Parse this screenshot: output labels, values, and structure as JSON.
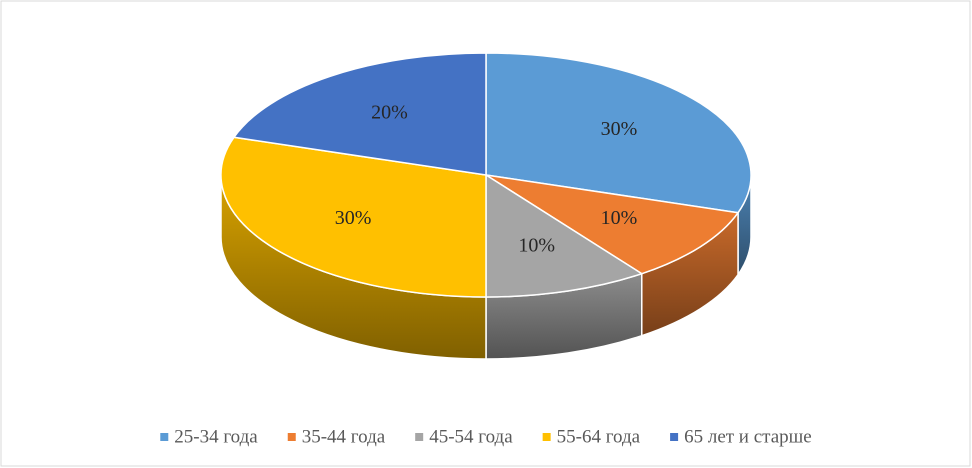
{
  "chart_data": {
    "type": "pie",
    "categories": [
      "25-34 года",
      "35-44 года",
      "45-54 года",
      "55-64 года",
      "65 лет и старше"
    ],
    "values": [
      30,
      10,
      10,
      30,
      20
    ],
    "value_labels": [
      "30%",
      "10%",
      "10%",
      "30%",
      "20%"
    ],
    "colors": [
      "#5b9bd5",
      "#ed7d31",
      "#a5a5a5",
      "#ffc000",
      "#4472c4"
    ],
    "legend": "bottom",
    "three_d": true
  }
}
